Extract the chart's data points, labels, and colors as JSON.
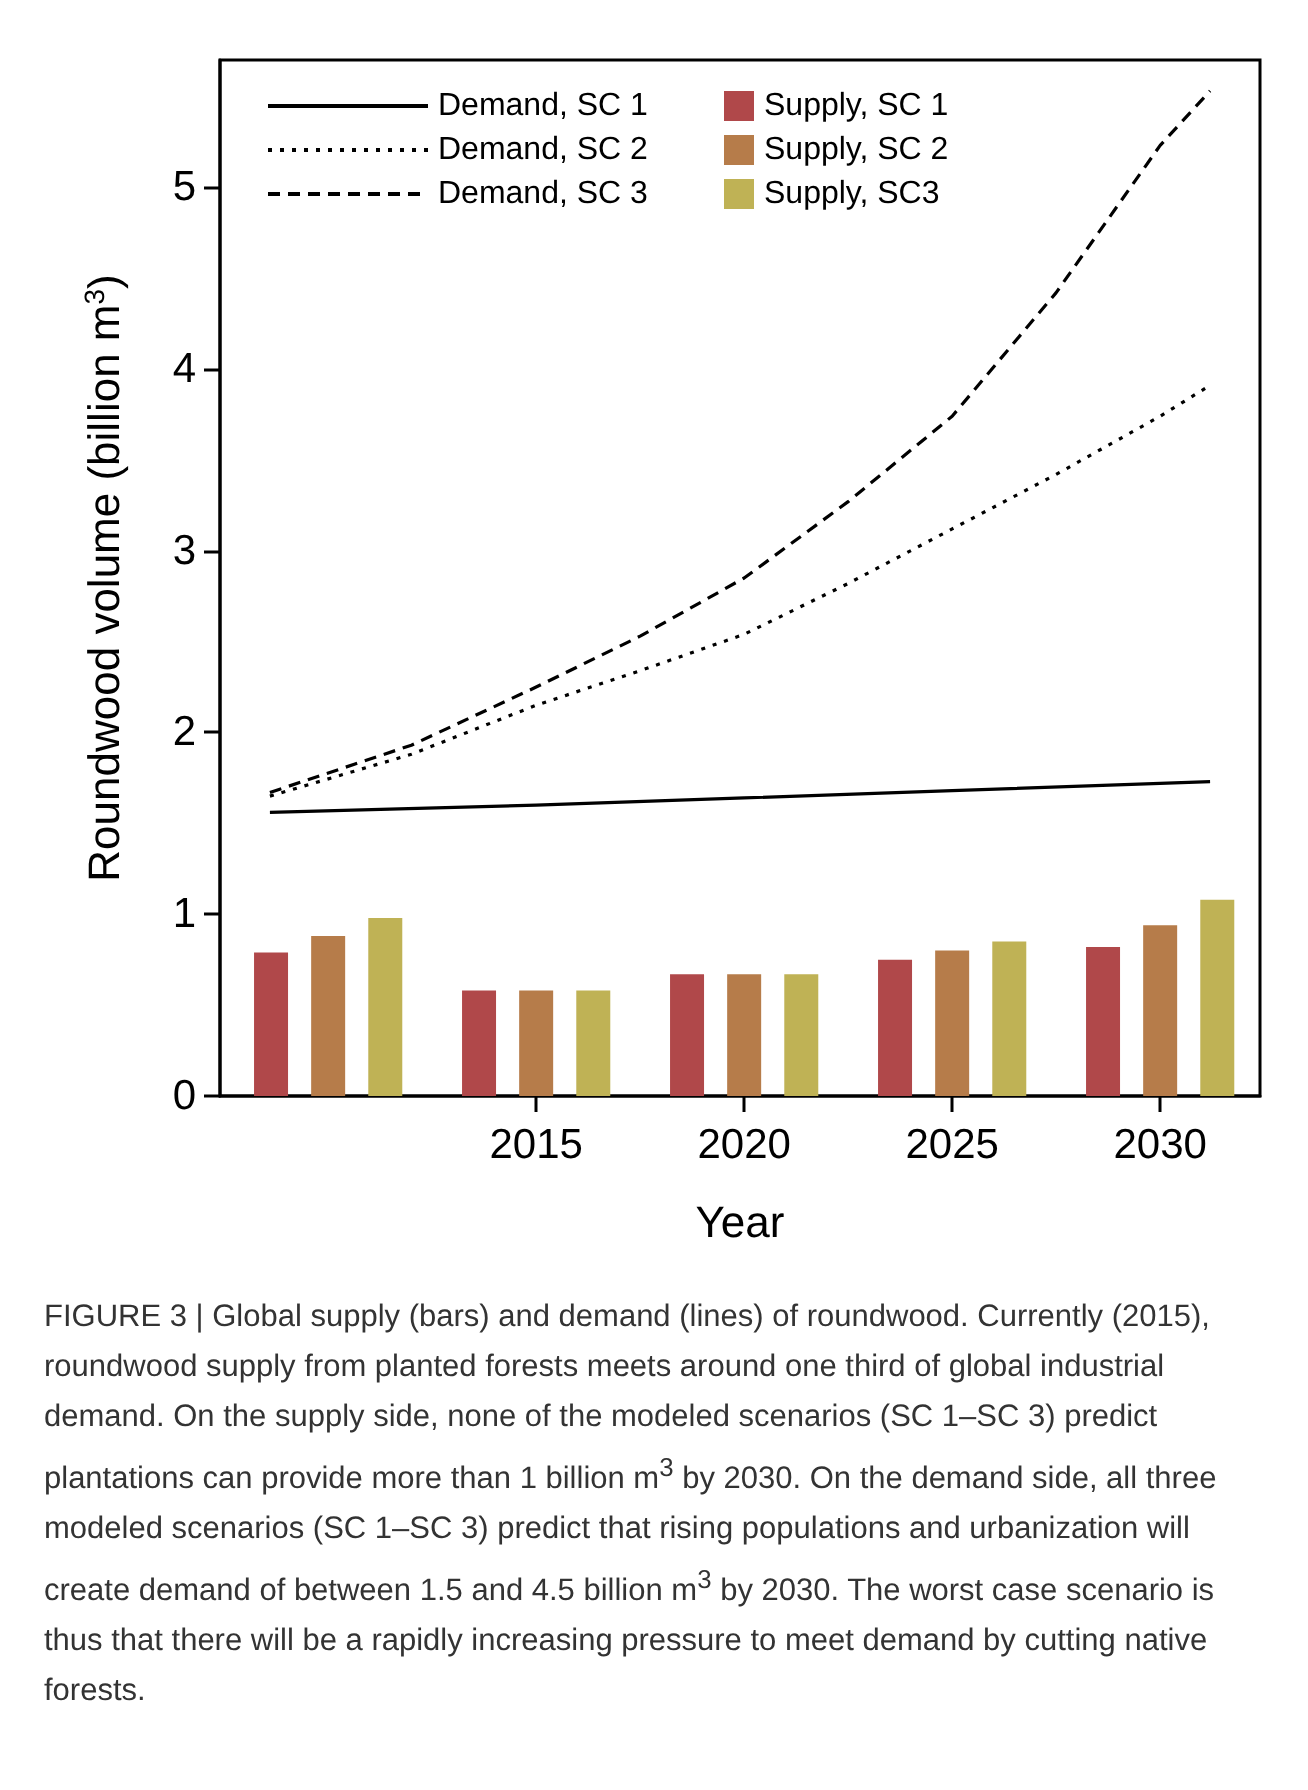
{
  "chart_data": {
    "type": "bar",
    "xlabel": "Year",
    "ylabel": "Roundwood volume (billion m$^{3}$)",
    "x": [
      2010,
      2015,
      2020,
      2025,
      2030
    ],
    "xlim": [
      2007.4,
      2032.4
    ],
    "xticks": [
      2015,
      2020,
      2025,
      2030
    ],
    "ylim": [
      0,
      5.7
    ],
    "yticks": [
      0,
      1,
      2,
      3,
      4,
      5
    ],
    "legend": "top left",
    "grid": false,
    "series": [
      {
        "name": "Demand, SC 1",
        "type": "line",
        "line_style": "solid",
        "color": "#000000",
        "x": [
          2008.6,
          2015,
          2020,
          2025,
          2030,
          2031.2
        ],
        "values": [
          1.56,
          1.6,
          1.64,
          1.68,
          1.72,
          1.73
        ]
      },
      {
        "name": "Demand, SC 2",
        "type": "line",
        "line_style": "dotted",
        "color": "#000000",
        "x": [
          2008.6,
          2012,
          2015,
          2017.5,
          2020,
          2022.5,
          2025,
          2027.5,
          2030,
          2031.2
        ],
        "values": [
          1.65,
          1.88,
          2.15,
          2.34,
          2.54,
          2.82,
          3.12,
          3.42,
          3.74,
          3.91
        ]
      },
      {
        "name": "Demand, SC 3",
        "type": "line",
        "line_style": "dashed",
        "color": "#000000",
        "x": [
          2008.6,
          2012,
          2015,
          2017.5,
          2020,
          2022.5,
          2025,
          2027.5,
          2030,
          2031.2
        ],
        "values": [
          1.67,
          1.93,
          2.25,
          2.53,
          2.85,
          3.27,
          3.74,
          4.42,
          5.23,
          5.53
        ]
      },
      {
        "name": "Supply, SC 1",
        "color": "#b0484a",
        "values": [
          0.79,
          0.58,
          0.67,
          0.75,
          0.82
        ]
      },
      {
        "name": "Supply, SC 2",
        "color": "#b67c4a",
        "values": [
          0.88,
          0.58,
          0.67,
          0.8,
          0.94
        ]
      },
      {
        "name": "Supply, SC3",
        "color": "#bfb255",
        "values": [
          0.98,
          0.58,
          0.67,
          0.85,
          1.08
        ]
      }
    ],
    "annotations": [
      "FIGURE 3 | Global supply (bars) and demand (lines) of roundwood. Currently (2015), roundwood supply from planted forests meets around one third of global industrial demand. On the supply side, none of the modeled scenarios (SC 1–SC 3) predict plantations can provide more than 1 billion m$^{3}$ by 2030. On the demand side, all three modeled scenarios (SC 1–SC 3) predict that rising populations and urbanization will create demand of between 1.5 and 4.5 billion m$^{3}$ by 2030. The worst case scenario is thus that there will be a rapidly increasing pressure to meet demand by cutting native forests."
    ]
  }
}
